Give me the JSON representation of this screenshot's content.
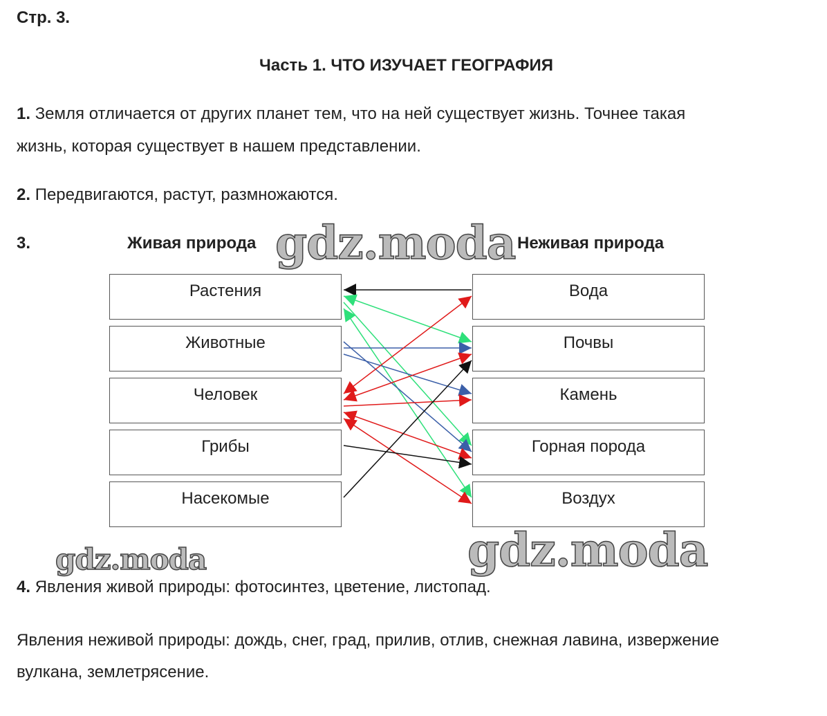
{
  "page_label": "Стр. 3.",
  "title": "Часть 1. ЧТО ИЗУЧАЕТ ГЕОГРАФИЯ",
  "q1": {
    "num": "1.",
    "line1": "Земля отличается от других планет тем, что на ней существует жизнь. Точнее такая",
    "line2": "жизнь, которая существует в нашем представлении."
  },
  "q2": {
    "num": "2.",
    "text": "Передвигаются, растут, размножаются."
  },
  "q3": {
    "num": "3.",
    "left_header": "Живая природа",
    "right_header": "Неживая природа",
    "left": [
      "Растения",
      "Животные",
      "Человек",
      "Грибы",
      "Насекомые"
    ],
    "right": [
      "Вода",
      "Почвы",
      "Камень",
      "Горная порода",
      "Воздух"
    ],
    "colors": {
      "black": "#111111",
      "green": "#2ee07a",
      "blue": "#3b5fa8",
      "red": "#e01a1a"
    },
    "connections": [
      {
        "from": "Вода",
        "to": "Растения",
        "color": "black"
      },
      {
        "from": "Растения",
        "to": "Почвы",
        "color": "green",
        "both": true
      },
      {
        "from": "Растения",
        "to": "Горная порода",
        "color": "green"
      },
      {
        "from": "Растения",
        "to": "Воздух",
        "color": "green",
        "both": true
      },
      {
        "from": "Животные",
        "to": "Горная порода",
        "color": "blue"
      },
      {
        "from": "Животные",
        "to": "Почвы",
        "color": "blue"
      },
      {
        "from": "Животные",
        "to": "Камень",
        "color": "blue"
      },
      {
        "from": "Человек",
        "to": "Вода",
        "color": "red",
        "both": true
      },
      {
        "from": "Человек",
        "to": "Почвы",
        "color": "red",
        "both": true
      },
      {
        "from": "Человек",
        "to": "Камень",
        "color": "red"
      },
      {
        "from": "Человек",
        "to": "Горная порода",
        "color": "red",
        "both": true
      },
      {
        "from": "Человек",
        "to": "Воздух",
        "color": "red",
        "both": true
      },
      {
        "from": "Грибы",
        "to": "Горная порода",
        "color": "black"
      },
      {
        "from": "Насекомые",
        "to": "Почвы",
        "color": "black"
      }
    ]
  },
  "q4": {
    "num": "4.",
    "living": "Явления живой природы: фотосинтез, цветение, листопад.",
    "nonliving1": "Явления неживой природы: дождь, снег, град, прилив, отлив, снежная лавина, извержение",
    "nonliving2": "вулкана, землетрясение."
  },
  "watermark": "gdz.moda"
}
